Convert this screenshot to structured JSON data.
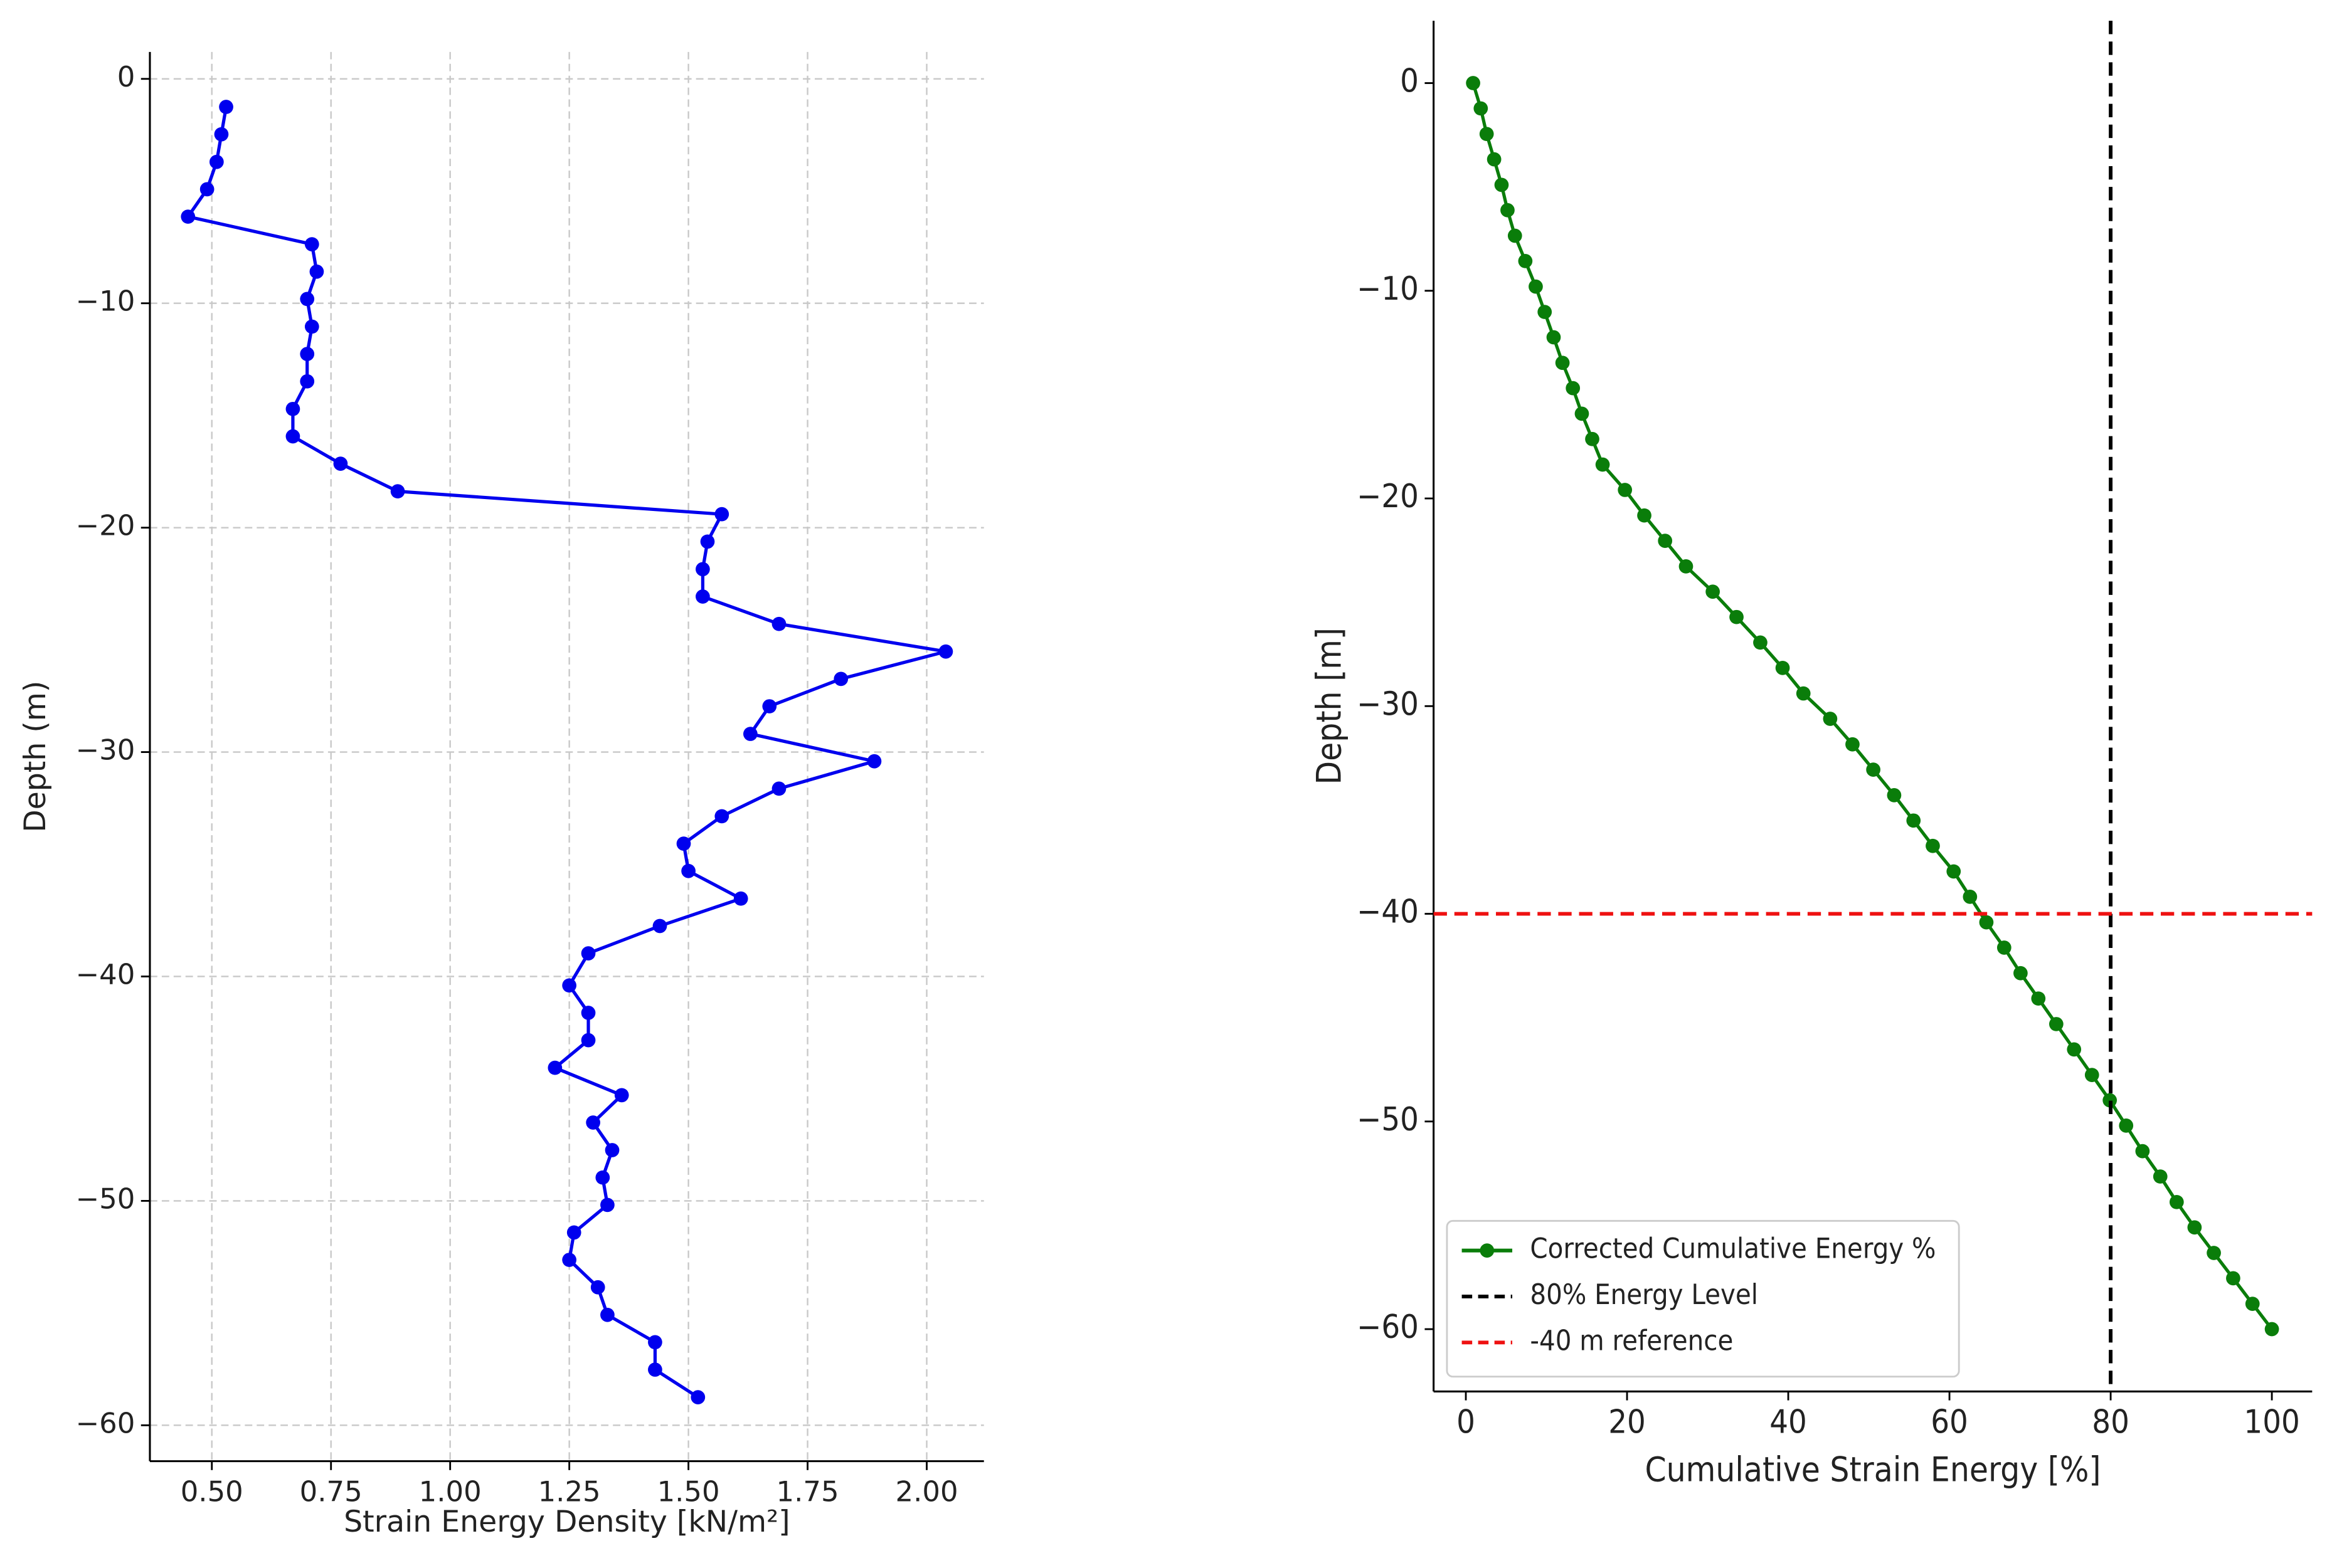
{
  "chart_data": [
    {
      "type": "line",
      "xlabel": "Strain Energy Density [kN/m²]",
      "ylabel": "Depth (m)",
      "xlim": [
        0.37,
        2.12
      ],
      "ylim": [
        -61.6,
        1.2
      ],
      "xticks": [
        {
          "value": 0.5,
          "label": "0.50"
        },
        {
          "value": 0.75,
          "label": "0.75"
        },
        {
          "value": 1.0,
          "label": "1.00"
        },
        {
          "value": 1.25,
          "label": "1.25"
        },
        {
          "value": 1.5,
          "label": "1.50"
        },
        {
          "value": 1.75,
          "label": "1.75"
        },
        {
          "value": 2.0,
          "label": "2.00"
        }
      ],
      "yticks": [
        0,
        {
          "value": -10,
          "label": "−10"
        },
        {
          "value": -20,
          "label": "−20"
        },
        {
          "value": -30,
          "label": "−30"
        },
        {
          "value": -40,
          "label": "−40"
        },
        {
          "value": -50,
          "label": "−50"
        },
        {
          "value": -60,
          "label": "−60"
        }
      ],
      "grid": true,
      "series": [
        {
          "color": "#0000ee",
          "x": [
            0.53,
            0.52,
            0.51,
            0.49,
            0.45,
            0.71,
            0.72,
            0.7,
            0.71,
            0.7,
            0.7,
            0.67,
            0.67,
            0.77,
            0.89,
            1.57,
            1.54,
            1.53,
            1.53,
            1.69,
            2.04,
            1.82,
            1.67,
            1.63,
            1.89,
            1.69,
            1.57,
            1.49,
            1.5,
            1.61,
            1.44,
            1.29,
            1.25,
            1.29,
            1.29,
            1.22,
            1.36,
            1.3,
            1.34,
            1.32,
            1.33,
            1.26,
            1.25,
            1.31,
            1.33,
            1.43,
            1.43,
            1.52
          ],
          "y": [
            -1.25,
            -2.47,
            -3.7,
            -4.92,
            -6.14,
            -7.37,
            -8.59,
            -9.81,
            -11.04,
            -12.26,
            -13.48,
            -14.71,
            -15.93,
            -17.15,
            -18.38,
            -19.4,
            -20.62,
            -21.85,
            -23.07,
            -24.29,
            -25.52,
            -26.74,
            -27.96,
            -29.19,
            -30.41,
            -31.63,
            -32.86,
            -34.08,
            -35.3,
            -36.53,
            -37.75,
            -38.97,
            -40.4,
            -41.62,
            -42.84,
            -44.07,
            -45.29,
            -46.51,
            -47.74,
            -48.96,
            -50.18,
            -51.41,
            -52.63,
            -53.85,
            -55.08,
            -56.3,
            -57.52,
            -58.75
          ]
        }
      ]
    },
    {
      "type": "line",
      "xlabel": "Cumulative Strain Energy [%]",
      "ylabel": "Depth [m]",
      "xlim": [
        -4,
        105
      ],
      "ylim": [
        -63,
        3
      ],
      "xticks": [
        0,
        20,
        40,
        60,
        80,
        100
      ],
      "yticks": [
        0,
        {
          "value": -10,
          "label": "−10"
        },
        {
          "value": -20,
          "label": "−20"
        },
        {
          "value": -30,
          "label": "−30"
        },
        {
          "value": -40,
          "label": "−40"
        },
        {
          "value": -50,
          "label": "−50"
        },
        {
          "value": -60,
          "label": "−60"
        }
      ],
      "grid": false,
      "legend": "lower left",
      "series": [
        {
          "name": "Corrected Cumulative Energy %",
          "color": "#0a7d0a",
          "x": [
            0.9,
            1.85,
            2.58,
            3.51,
            4.43,
            5.17,
            6.09,
            7.38,
            8.67,
            9.78,
            10.89,
            11.99,
            13.28,
            14.39,
            15.68,
            16.97,
            19.74,
            22.14,
            24.72,
            27.31,
            30.63,
            33.58,
            36.53,
            39.3,
            41.88,
            45.2,
            47.97,
            50.55,
            53.14,
            55.54,
            57.93,
            60.52,
            62.55,
            64.58,
            66.79,
            68.82,
            71.03,
            73.25,
            75.46,
            77.68,
            79.89,
            81.92,
            83.95,
            86.16,
            88.19,
            90.41,
            92.8,
            95.2,
            97.6,
            100
          ],
          "y": [
            0,
            -1.22,
            -2.45,
            -3.67,
            -4.9,
            -6.12,
            -7.35,
            -8.57,
            -9.8,
            -11.02,
            -12.24,
            -13.47,
            -14.69,
            -15.92,
            -17.14,
            -18.37,
            -19.59,
            -20.82,
            -22.04,
            -23.27,
            -24.49,
            -25.71,
            -26.94,
            -28.16,
            -29.39,
            -30.61,
            -31.84,
            -33.06,
            -34.29,
            -35.51,
            -36.73,
            -37.96,
            -39.18,
            -40.41,
            -41.63,
            -42.86,
            -44.08,
            -45.31,
            -46.53,
            -47.76,
            -48.98,
            -50.2,
            -51.43,
            -52.65,
            -53.88,
            -55.1,
            -56.33,
            -57.55,
            -58.78,
            -60
          ]
        }
      ],
      "reference_lines": [
        {
          "name": "80% Energy Level",
          "axis": "x",
          "value": 80,
          "color": "#000000"
        },
        {
          "name": "-40 m reference",
          "axis": "y",
          "value": -40,
          "color": "#ee1111"
        }
      ]
    }
  ]
}
